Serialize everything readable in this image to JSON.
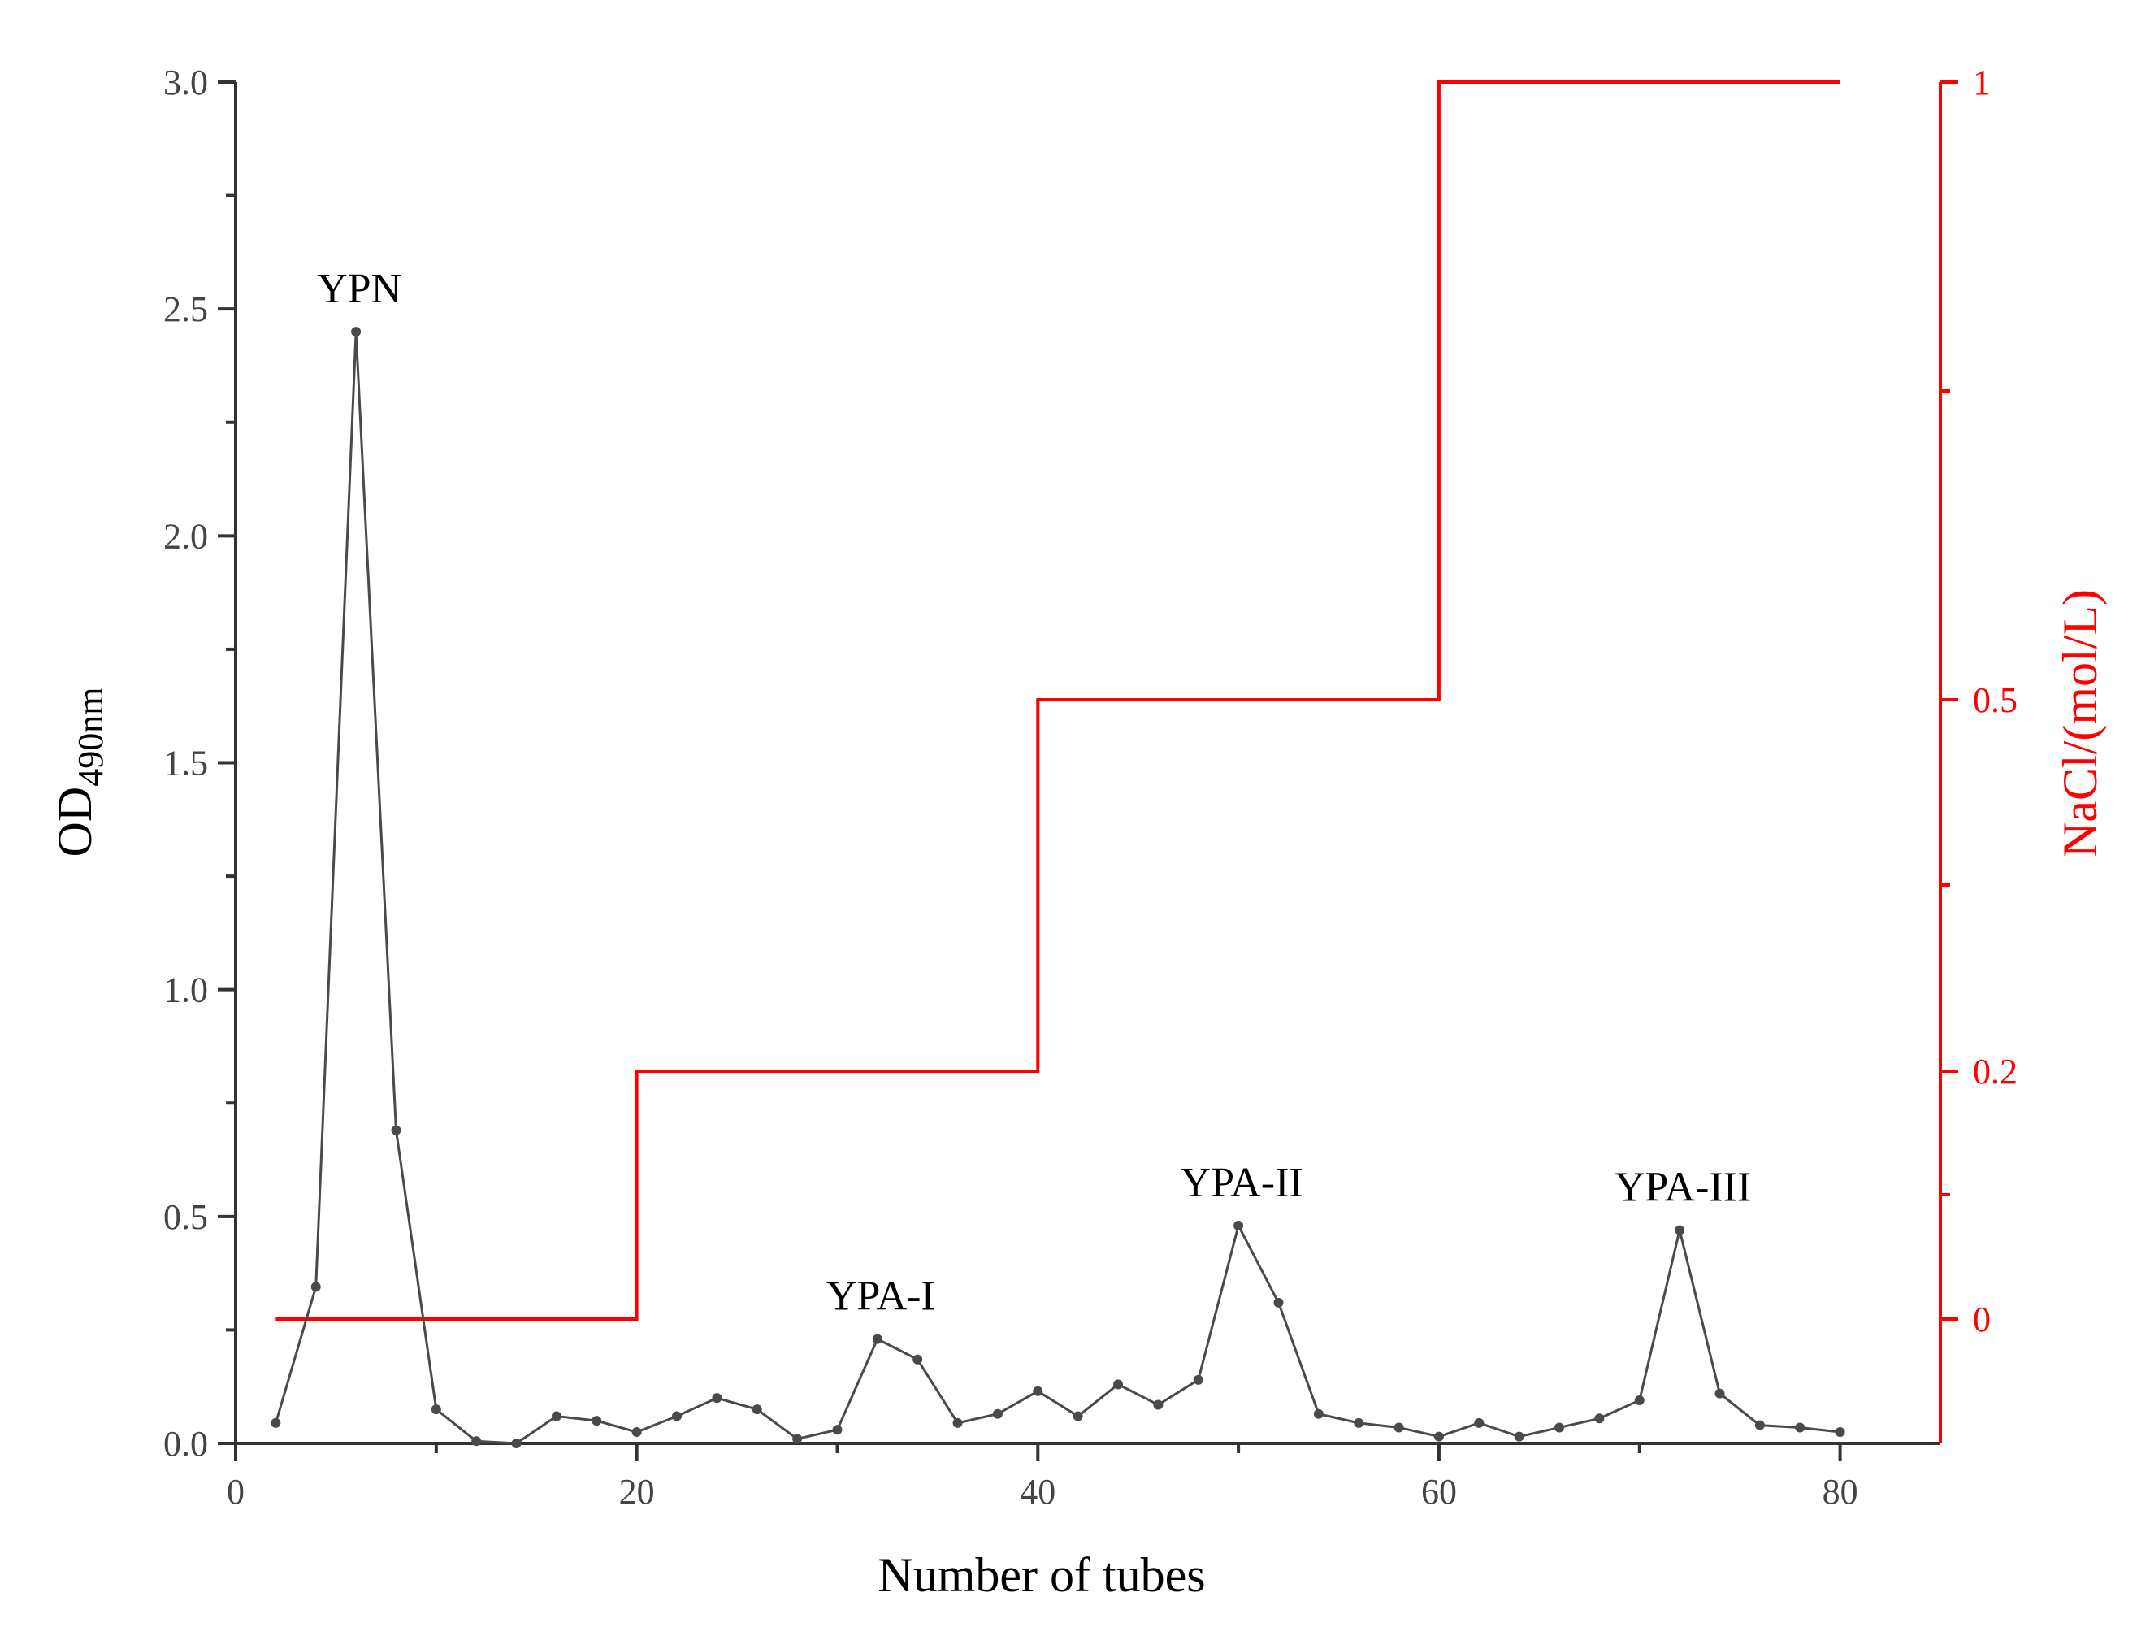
{
  "chart_data": {
    "type": "line",
    "xlabel": "Number of tubes",
    "ylabel": {
      "main": "OD",
      "sub": "490nm"
    },
    "y2label": "NaCl/(mol/L)",
    "xlim": [
      0,
      85
    ],
    "ylim": [
      0,
      3.0
    ],
    "x_ticks": [
      "0",
      "20",
      "40",
      "60",
      "80"
    ],
    "y_ticks": [
      "0.0",
      "0.5",
      "1.0",
      "1.5",
      "2.0",
      "2.5",
      "3.0"
    ],
    "y2_ticks": [
      "0",
      "0.2",
      "0.5",
      "1"
    ],
    "colors": {
      "od": "#4a4a4a",
      "nacl": "#ff0000",
      "axis": "#333333"
    },
    "series": [
      {
        "x": [
          2,
          4,
          6,
          8,
          10,
          12,
          14,
          16,
          18,
          20,
          22,
          24,
          26,
          28,
          30,
          32,
          34,
          36,
          38,
          40,
          42,
          44,
          46,
          48,
          50,
          52,
          54,
          56,
          58,
          60,
          62,
          64,
          66,
          68,
          70,
          72,
          74,
          76,
          78,
          80
        ],
        "values": [
          0.045,
          0.345,
          2.45,
          0.69,
          0.075,
          0.005,
          0.0,
          0.06,
          0.05,
          0.025,
          0.06,
          0.1,
          0.075,
          0.01,
          0.03,
          0.23,
          0.185,
          0.045,
          0.065,
          0.115,
          0.06,
          0.13,
          0.085,
          0.14,
          0.48,
          0.31,
          0.065,
          0.045,
          0.035,
          0.015,
          0.045,
          0.015,
          0.035,
          0.055,
          0.095,
          0.47,
          0.11,
          0.04,
          0.035,
          0.025
        ]
      },
      {
        "type": "step",
        "x": [
          2,
          20,
          20,
          40,
          40,
          60,
          60,
          80
        ],
        "values": [
          0,
          0,
          0.2,
          0.2,
          0.5,
          0.5,
          1,
          1
        ]
      }
    ],
    "annotations": [
      {
        "text": "YPN",
        "x": 6,
        "y": 2.45
      },
      {
        "text": "YPA-I",
        "x": 32,
        "y": 0.23
      },
      {
        "text": "YPA-II",
        "x": 50,
        "y": 0.48
      },
      {
        "text": "YPA-III",
        "x": 72,
        "y": 0.47
      }
    ]
  }
}
